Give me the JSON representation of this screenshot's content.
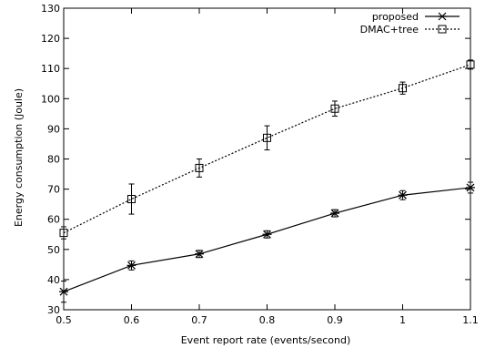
{
  "chart_data": {
    "type": "line",
    "title": "",
    "xlabel": "Event report rate (events/second)",
    "ylabel": "Energy consumption (Joule)",
    "x": [
      0.5,
      0.6,
      0.7,
      0.8,
      0.9,
      1.0,
      1.1
    ],
    "x_tick_labels": [
      "0.5",
      "0.6",
      "0.7",
      "0.8",
      "0.9",
      "1",
      "1.1"
    ],
    "xlim": [
      0.5,
      1.1
    ],
    "ylim": [
      30,
      130
    ],
    "y_ticks": [
      30,
      40,
      50,
      60,
      70,
      80,
      90,
      100,
      110,
      120,
      130
    ],
    "grid": false,
    "legend_position": "top-right",
    "series": [
      {
        "name": "proposed",
        "marker": "star",
        "line_style": "solid",
        "color": "#000000",
        "values": [
          36,
          44.7,
          48.5,
          55,
          62,
          68,
          70.5
        ],
        "error": [
          3.5,
          1.5,
          1.2,
          1.2,
          1.2,
          1.5,
          1.8
        ]
      },
      {
        "name": "DMAC+tree",
        "marker": "square",
        "line_style": "dotted",
        "color": "#000000",
        "values": [
          55.5,
          66.7,
          77,
          87,
          96.7,
          103.5,
          111.3
        ],
        "error": [
          2,
          5,
          3,
          4,
          2.5,
          2,
          1.5
        ]
      }
    ]
  }
}
